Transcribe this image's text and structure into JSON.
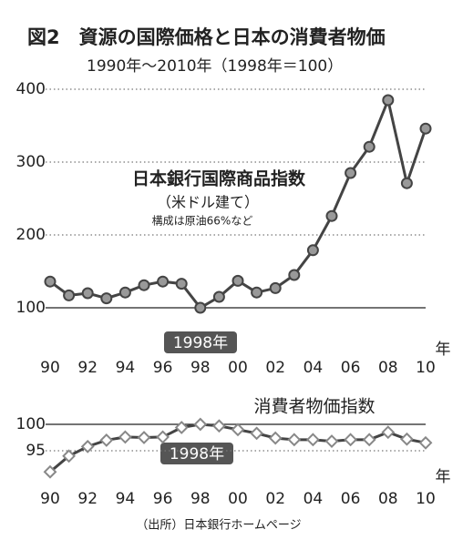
{
  "title": "図2　資源の国際価格と日本の消費者物価",
  "subtitle": "1990年〜2010年（1998年＝100）",
  "source": "（出所）日本銀行ホームページ",
  "chart_data": [
    {
      "type": "line",
      "annotations": [
        "日本銀行国際商品指数",
        "（米ドル建て）",
        "構成は原油66%など",
        "1998年",
        "年"
      ],
      "x": [
        1990,
        1991,
        1992,
        1993,
        1994,
        1995,
        1996,
        1997,
        1998,
        1999,
        2000,
        2001,
        2002,
        2003,
        2004,
        2005,
        2006,
        2007,
        2008,
        2009,
        2010
      ],
      "series": [
        {
          "name": "日本銀行国際商品指数",
          "color": "#444444",
          "marker": "circle",
          "values": [
            136,
            117,
            120,
            113,
            121,
            131,
            136,
            133,
            100,
            115,
            137,
            121,
            127,
            145,
            179,
            226,
            285,
            321,
            385,
            271,
            346
          ]
        }
      ],
      "xlim": [
        1990,
        2010
      ],
      "xticks": [
        {
          "value": 1990,
          "label": "90"
        },
        {
          "value": 1992,
          "label": "92"
        },
        {
          "value": 1994,
          "label": "94"
        },
        {
          "value": 1996,
          "label": "96"
        },
        {
          "value": 1998,
          "label": "98"
        },
        {
          "value": 2000,
          "label": "00"
        },
        {
          "value": 2002,
          "label": "02"
        },
        {
          "value": 2004,
          "label": "04"
        },
        {
          "value": 2006,
          "label": "06"
        },
        {
          "value": 2008,
          "label": "08"
        },
        {
          "value": 2010,
          "label": "10"
        }
      ],
      "ylim": [
        50,
        400
      ],
      "yticks": [
        100,
        200,
        300,
        400
      ],
      "grid": true,
      "reference_line": 100
    },
    {
      "type": "line",
      "annotations": [
        "消費者物価指数",
        "1998年",
        "年"
      ],
      "x": [
        1990,
        1991,
        1992,
        1993,
        1994,
        1995,
        1996,
        1997,
        1998,
        1999,
        2000,
        2001,
        2002,
        2003,
        2004,
        2005,
        2006,
        2007,
        2008,
        2009,
        2010
      ],
      "series": [
        {
          "name": "消費者物価指数",
          "color": "#444444",
          "marker": "diamond",
          "values": [
            91.0,
            94.0,
            95.8,
            97.0,
            97.6,
            97.5,
            97.6,
            99.4,
            100.0,
            99.7,
            99.0,
            98.3,
            97.4,
            97.1,
            97.1,
            96.8,
            97.1,
            97.1,
            98.5,
            97.2,
            96.5
          ]
        }
      ],
      "xlim": [
        1990,
        2010
      ],
      "xticks": [
        {
          "value": 1990,
          "label": "90"
        },
        {
          "value": 1992,
          "label": "92"
        },
        {
          "value": 1994,
          "label": "94"
        },
        {
          "value": 1996,
          "label": "96"
        },
        {
          "value": 1998,
          "label": "98"
        },
        {
          "value": 2000,
          "label": "00"
        },
        {
          "value": 2002,
          "label": "02"
        },
        {
          "value": 2004,
          "label": "04"
        },
        {
          "value": 2006,
          "label": "06"
        },
        {
          "value": 2008,
          "label": "08"
        },
        {
          "value": 2010,
          "label": "10"
        }
      ],
      "ylim": [
        90,
        101
      ],
      "yticks": [
        95,
        100
      ],
      "grid": true,
      "reference_line": 100
    }
  ]
}
